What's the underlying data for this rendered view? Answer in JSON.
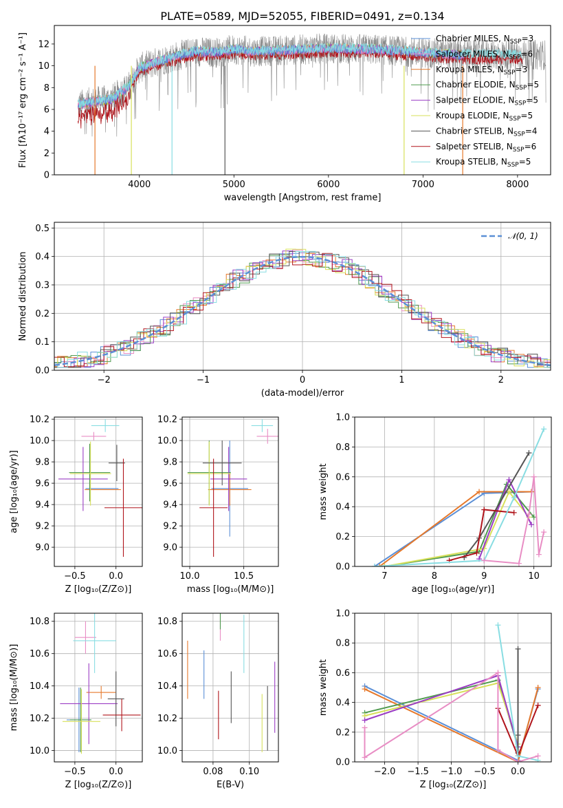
{
  "colors": {
    "cm": "#5b8fd6",
    "sm": "#e88dc4",
    "km": "#e6782a",
    "ce": "#4f9a4f",
    "se": "#9a3cc4",
    "ke": "#d7e05a",
    "cs": "#555555",
    "ss": "#b0141b",
    "ks": "#88dde2",
    "gray": "#888888",
    "gauss": "#5b8fd6"
  },
  "chart_data": [
    {
      "id": "spectrum",
      "type": "line",
      "title": "PLATE=0589, MJD=52055, FIBERID=0491, z=0.134",
      "xlabel": "wavelength [Angstrom, rest frame]",
      "ylabel": "Flux [fλ10⁻¹⁷ erg cm⁻² s⁻¹ A⁻¹]",
      "xlim": [
        3100,
        8350
      ],
      "ylim": [
        0,
        13.7
      ],
      "xticks": [
        4000,
        5000,
        6000,
        7000,
        8000
      ],
      "yticks": [
        0,
        2,
        4,
        6,
        8,
        10,
        12
      ],
      "legend": "top-right",
      "legend_entries": [
        {
          "label": "Chabrier MILES, N",
          "sub": "SSP",
          "post": "=3",
          "color": "cm"
        },
        {
          "label": "Salpeter MILES, N",
          "sub": "SSP",
          "post": "=6",
          "color": "sm"
        },
        {
          "label": "Kroupa MILES, N",
          "sub": "SSP",
          "post": "=3",
          "color": "km"
        },
        {
          "label": "Chabrier ELODIE, N",
          "sub": "SSP",
          "post": "=5",
          "color": "ce"
        },
        {
          "label": "Salpeter ELODIE, N",
          "sub": "SSP",
          "post": "=5",
          "color": "se"
        },
        {
          "label": "Kroupa ELODIE, N",
          "sub": "SSP",
          "post": "=5",
          "color": "ke"
        },
        {
          "label": "Chabrier STELIB, N",
          "sub": "SSP",
          "post": "=4",
          "color": "cs"
        },
        {
          "label": "Salpeter STELIB, N",
          "sub": "SSP",
          "post": "=6",
          "color": "ss"
        },
        {
          "label": "Kroupa STELIB, N",
          "sub": "SSP",
          "post": "=5",
          "color": "ks"
        }
      ],
      "continuum": {
        "x": [
          3350,
          3500,
          3700,
          3900,
          4000,
          4200,
          4400,
          4600,
          4800,
          5000,
          5200,
          5500,
          6000,
          6500,
          7000,
          7400
        ],
        "y": [
          6.4,
          6.7,
          6.9,
          8.2,
          9.8,
          10.4,
          10.9,
          11.3,
          11.2,
          11.5,
          11.3,
          11.4,
          11.6,
          11.5,
          11.2,
          11.0
        ]
      },
      "drops": [
        {
          "x": 3530,
          "color": "km"
        },
        {
          "x": 3915,
          "color": "ke"
        },
        {
          "x": 4345,
          "color": "ks"
        },
        {
          "x": 4905,
          "color": "cs"
        },
        {
          "x": 6800,
          "color": "ke"
        },
        {
          "x": 7420,
          "color": "km"
        }
      ]
    },
    {
      "id": "residuals",
      "type": "line",
      "xlabel": "(data-model)/error",
      "ylabel": "Normed distribution",
      "xlim": [
        -2.5,
        2.5
      ],
      "ylim": [
        0,
        0.52
      ],
      "xticks": [
        -2,
        -1,
        0,
        1,
        2
      ],
      "yticks": [
        0.0,
        0.1,
        0.2,
        0.3,
        0.4,
        0.5
      ],
      "legend": "top-right",
      "legend_label": "𝒩(0, 1)",
      "gauss": {
        "mu": 0,
        "sigma": 1
      }
    },
    {
      "id": "age_vs_Z",
      "type": "scatter",
      "xlabel": "Z [log₁₀(Z/Z⊙)]",
      "ylabel": "age [log₁₀(age/yr)]",
      "xlim": [
        -0.75,
        0.32
      ],
      "ylim": [
        8.82,
        10.22
      ],
      "xticks": [
        -0.5,
        0.0
      ],
      "yticks": [
        9.0,
        9.2,
        9.4,
        9.6,
        9.8,
        10.0,
        10.2
      ],
      "points": [
        {
          "c": "cm",
          "x": -0.17,
          "xe": 0.2,
          "y": 9.55,
          "ye": 0.0
        },
        {
          "c": "sm",
          "x": -0.27,
          "xe": 0.15,
          "y": 10.04,
          "ye": 0.04
        },
        {
          "c": "km",
          "x": -0.16,
          "xe": 0.22,
          "y": 9.54,
          "ye": 0.0
        },
        {
          "c": "ce",
          "x": -0.32,
          "xe": 0.25,
          "y": 9.7,
          "ye": 0.27
        },
        {
          "c": "se",
          "x": -0.4,
          "xe": 0.3,
          "y": 9.64,
          "ye": 0.3
        },
        {
          "c": "ke",
          "x": -0.31,
          "xe": 0.25,
          "y": 9.69,
          "ye": 0.3
        },
        {
          "c": "cs",
          "x": 0.01,
          "xe": 0.1,
          "y": 9.79,
          "ye": 0.17
        },
        {
          "c": "ss",
          "x": 0.09,
          "xe": 0.23,
          "y": 9.37,
          "ye": 0.46
        },
        {
          "c": "ks",
          "x": -0.13,
          "xe": 0.17,
          "y": 10.14,
          "ye": 0.06
        }
      ]
    },
    {
      "id": "age_vs_mass",
      "type": "scatter",
      "xlabel": "mass [log₁₀(M/M⊙)]",
      "ylabel": "",
      "xlim": [
        9.93,
        10.82
      ],
      "ylim": [
        8.82,
        10.22
      ],
      "xticks": [
        10.0,
        10.5
      ],
      "yticks": [
        9.0,
        9.2,
        9.4,
        9.6,
        9.8,
        10.0,
        10.2
      ],
      "points": [
        {
          "c": "cm",
          "x": 10.37,
          "xe": 0.17,
          "y": 9.55,
          "ye": 0.45
        },
        {
          "c": "sm",
          "x": 10.72,
          "xe": 0.1,
          "y": 10.04,
          "ye": 0.07
        },
        {
          "c": "km",
          "x": 10.37,
          "xe": 0.2,
          "y": 9.54,
          "ye": 0.15
        },
        {
          "c": "ce",
          "x": 10.18,
          "xe": 0.2,
          "y": 9.7,
          "ye": 0.3
        },
        {
          "c": "se",
          "x": 10.36,
          "xe": 0.17,
          "y": 9.64,
          "ye": 0.3
        },
        {
          "c": "ke",
          "x": 10.18,
          "xe": 0.2,
          "y": 9.69,
          "ye": 0.3
        },
        {
          "c": "cs",
          "x": 10.3,
          "xe": 0.18,
          "y": 9.79,
          "ye": 0.21
        },
        {
          "c": "ss",
          "x": 10.22,
          "xe": 0.13,
          "y": 9.37,
          "ye": 0.46
        },
        {
          "c": "ks",
          "x": 10.67,
          "xe": 0.1,
          "y": 10.14,
          "ye": 0.06
        }
      ]
    },
    {
      "id": "weight_vs_age",
      "type": "line",
      "xlabel": "age [log₁₀(age/yr)]",
      "ylabel": "mass weight",
      "xlim": [
        6.4,
        10.35
      ],
      "ylim": [
        0,
        1.0
      ],
      "xticks": [
        7,
        8,
        9,
        10
      ],
      "yticks": [
        0.0,
        0.2,
        0.4,
        0.6,
        0.8,
        1.0
      ],
      "series": [
        {
          "c": "cm",
          "pts": [
            [
              6.8,
              0.0
            ],
            [
              9.0,
              0.49
            ],
            [
              9.95,
              0.5
            ]
          ]
        },
        {
          "c": "km",
          "pts": [
            [
              6.9,
              0.0
            ],
            [
              8.9,
              0.5
            ],
            [
              9.95,
              0.5
            ]
          ]
        },
        {
          "c": "ce",
          "pts": [
            [
              7.0,
              0.0
            ],
            [
              8.9,
              0.1
            ],
            [
              9.45,
              0.55
            ],
            [
              10.0,
              0.33
            ]
          ]
        },
        {
          "c": "ke",
          "pts": [
            [
              7.0,
              0.0
            ],
            [
              9.0,
              0.12
            ],
            [
              9.5,
              0.5
            ],
            [
              9.9,
              0.33
            ]
          ]
        },
        {
          "c": "se",
          "pts": [
            [
              8.9,
              0.05
            ],
            [
              9.5,
              0.58
            ],
            [
              9.95,
              0.28
            ]
          ]
        },
        {
          "c": "cs",
          "pts": [
            [
              8.6,
              0.06
            ],
            [
              8.9,
              0.19
            ],
            [
              9.9,
              0.76
            ]
          ]
        },
        {
          "c": "ss",
          "pts": [
            [
              8.3,
              0.04
            ],
            [
              8.85,
              0.09
            ],
            [
              9.0,
              0.38
            ],
            [
              9.6,
              0.36
            ]
          ]
        },
        {
          "c": "ks",
          "pts": [
            [
              6.8,
              0.0
            ],
            [
              9.0,
              0.04
            ],
            [
              9.6,
              0.46
            ],
            [
              10.2,
              0.92
            ]
          ]
        },
        {
          "c": "sm",
          "pts": [
            [
              9.0,
              0.04
            ],
            [
              9.7,
              0.02
            ],
            [
              9.9,
              0.35
            ],
            [
              10.0,
              0.6
            ],
            [
              10.1,
              0.08
            ],
            [
              10.2,
              0.23
            ]
          ]
        }
      ]
    },
    {
      "id": "mass_vs_Z",
      "type": "scatter",
      "xlabel": "Z [log₁₀(Z/Z⊙)]",
      "ylabel": "mass [log₁₀(M/M⊙)]",
      "xlim": [
        -0.75,
        0.32
      ],
      "ylim": [
        9.93,
        10.85
      ],
      "xticks": [
        -0.5,
        0.0
      ],
      "yticks": [
        10.0,
        10.2,
        10.4,
        10.6,
        10.8
      ],
      "points": [
        {
          "c": "cm",
          "x": -0.45,
          "xe": 0.15,
          "y": 10.19,
          "ye": 0.2
        },
        {
          "c": "sm",
          "x": -0.37,
          "xe": 0.13,
          "y": 10.7,
          "ye": 0.1
        },
        {
          "c": "km",
          "x": -0.18,
          "xe": 0.18,
          "y": 10.36,
          "ye": 0.04
        },
        {
          "c": "ce",
          "x": -0.43,
          "xe": 0.13,
          "y": 10.19,
          "ye": 0.2
        },
        {
          "c": "se",
          "x": -0.33,
          "xe": 0.35,
          "y": 10.29,
          "ye": 0.25
        },
        {
          "c": "ke",
          "x": -0.42,
          "xe": 0.23,
          "y": 10.18,
          "ye": 0.2
        },
        {
          "c": "cs",
          "x": 0.0,
          "xe": 0.1,
          "y": 10.32,
          "ye": 0.17
        },
        {
          "c": "ss",
          "x": 0.07,
          "xe": 0.23,
          "y": 10.22,
          "ye": 0.1
        },
        {
          "c": "ks",
          "x": -0.26,
          "xe": 0.26,
          "y": 10.68,
          "ye": 0.2
        }
      ]
    },
    {
      "id": "mass_vs_EBV",
      "type": "scatter",
      "xlabel": "E(B-V)",
      "ylabel": "",
      "xlim": [
        0.063,
        0.116
      ],
      "ylim": [
        9.93,
        10.85
      ],
      "xticks": [
        0.08,
        0.1
      ],
      "yticks": [
        10.0,
        10.2,
        10.4,
        10.6,
        10.8
      ],
      "points": [
        {
          "c": "km",
          "x": 0.066,
          "ye": 0.18,
          "y": 10.5
        },
        {
          "c": "cm",
          "x": 0.075,
          "ye": 0.15,
          "y": 10.47
        },
        {
          "c": "ss",
          "x": 0.083,
          "ye": 0.15,
          "y": 10.22
        },
        {
          "c": "sm",
          "x": 0.084,
          "ye": 0.08,
          "y": 10.76
        },
        {
          "c": "ce",
          "x": 0.084,
          "ye": 0.05,
          "y": 10.8
        },
        {
          "c": "cs",
          "x": 0.09,
          "ye": 0.16,
          "y": 10.33
        },
        {
          "c": "ks",
          "x": 0.097,
          "ye": 0.18,
          "y": 10.66
        },
        {
          "c": "ke",
          "x": 0.107,
          "ye": 0.18,
          "y": 10.17
        },
        {
          "c": "cs",
          "x": 0.11,
          "ye": 0.2,
          "y": 10.2
        },
        {
          "c": "se",
          "x": 0.114,
          "ye": 0.22,
          "y": 10.33
        }
      ]
    },
    {
      "id": "weight_vs_Z",
      "type": "line",
      "xlabel": "Z [log₁₀(Z/Z⊙)]",
      "ylabel": "mass weight",
      "xlim": [
        -2.45,
        0.5
      ],
      "ylim": [
        0,
        1.0
      ],
      "xticks": [
        -2.0,
        -1.5,
        -1.0,
        -0.5,
        0.0
      ],
      "yticks": [
        0.0,
        0.2,
        0.4,
        0.6,
        0.8,
        1.0
      ],
      "series": [
        {
          "c": "cm",
          "pts": [
            [
              -2.3,
              0.51
            ],
            [
              0.0,
              0.01
            ],
            [
              0.3,
              0.49
            ]
          ]
        },
        {
          "c": "km",
          "pts": [
            [
              -2.3,
              0.49
            ],
            [
              0.0,
              0.0
            ],
            [
              0.3,
              0.5
            ]
          ]
        },
        {
          "c": "ce",
          "pts": [
            [
              -2.3,
              0.33
            ],
            [
              -0.3,
              0.55
            ],
            [
              0.0,
              0.1
            ]
          ]
        },
        {
          "c": "ke",
          "pts": [
            [
              -2.3,
              0.31
            ],
            [
              -0.3,
              0.53
            ],
            [
              0.0,
              0.12
            ]
          ]
        },
        {
          "c": "se",
          "pts": [
            [
              -2.3,
              0.28
            ],
            [
              -0.3,
              0.58
            ],
            [
              0.0,
              0.1
            ]
          ]
        },
        {
          "c": "cs",
          "pts": [
            [
              0.0,
              0.06
            ],
            [
              0.0,
              0.76
            ],
            [
              0.0,
              0.18
            ]
          ]
        },
        {
          "c": "ss",
          "pts": [
            [
              -0.3,
              0.36
            ],
            [
              0.0,
              0.04
            ],
            [
              0.3,
              0.38
            ]
          ]
        },
        {
          "c": "ks",
          "pts": [
            [
              -0.3,
              0.92
            ],
            [
              0.0,
              0.04
            ],
            [
              0.3,
              0.01
            ]
          ]
        },
        {
          "c": "sm",
          "pts": [
            [
              -2.3,
              0.23
            ],
            [
              -2.3,
              0.03
            ],
            [
              -0.3,
              0.6
            ],
            [
              -0.3,
              0.08
            ],
            [
              0.0,
              0.0
            ],
            [
              0.3,
              0.04
            ]
          ]
        }
      ]
    }
  ]
}
